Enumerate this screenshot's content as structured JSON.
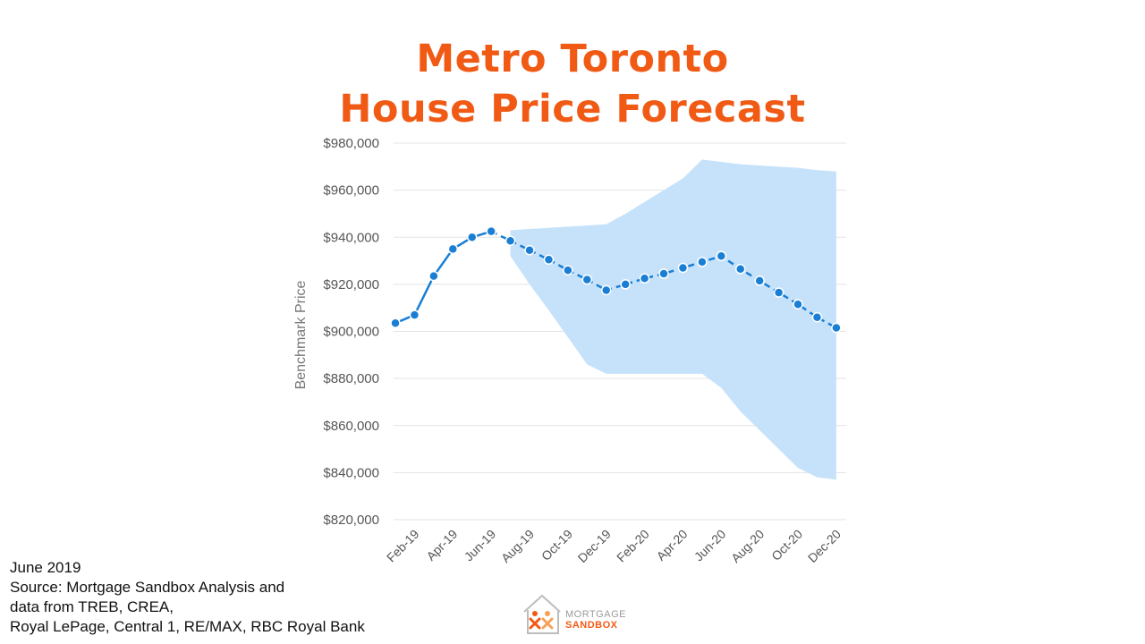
{
  "title_lines": [
    "Metro Toronto",
    "House Price Forecast"
  ],
  "source_lines": [
    "June 2019",
    "Source: Mortgage Sandbox Analysis and",
    "data from TREB, CREA,",
    "Royal LePage, Central 1, RE/MAX, RBC Royal Bank"
  ],
  "logo": {
    "line1": "MORTGAGE",
    "line2": "SANDBOX",
    "icon": "house-people-logo-icon",
    "accent": "#f05a14"
  },
  "chart_data": {
    "type": "line",
    "title": "Metro Toronto House Price Forecast",
    "xlabel": "",
    "ylabel": "Benchmark Price",
    "ylim": [
      820000,
      980000
    ],
    "yticks": [
      820000,
      840000,
      860000,
      880000,
      900000,
      920000,
      940000,
      960000,
      980000
    ],
    "ytick_labels": [
      "$820,000",
      "$840,000",
      "$860,000",
      "$880,000",
      "$900,000",
      "$920,000",
      "$940,000",
      "$960,000",
      "$980,000"
    ],
    "x": [
      "Jan-19",
      "Feb-19",
      "Mar-19",
      "Apr-19",
      "May-19",
      "Jun-19",
      "Jul-19",
      "Aug-19",
      "Sep-19",
      "Oct-19",
      "Nov-19",
      "Dec-19",
      "Jan-20",
      "Feb-20",
      "Mar-20",
      "Apr-20",
      "May-20",
      "Jun-20",
      "Jul-20",
      "Aug-20",
      "Sep-20",
      "Oct-20",
      "Nov-20",
      "Dec-20"
    ],
    "xtick_labels": [
      "Feb-19",
      "Apr-19",
      "Jun-19",
      "Aug-19",
      "Oct-19",
      "Dec-19",
      "Feb-20",
      "Apr-20",
      "Jun-20",
      "Aug-20",
      "Oct-20",
      "Dec-20"
    ],
    "series": [
      {
        "values": [
          903500,
          907000,
          923500,
          935000,
          940000,
          942500,
          938500,
          934500,
          930500,
          926000,
          922000,
          917500,
          920000,
          922500,
          924500,
          927000,
          929500,
          932000,
          926500,
          921500,
          916500,
          911500,
          906000,
          901500
        ],
        "actual_points": 6,
        "color": "#1a7fd4"
      }
    ],
    "forecast_band": {
      "x_start_index": 6,
      "upper": [
        943000,
        943500,
        944000,
        944500,
        945000,
        945500,
        950000,
        955000,
        960000,
        965000,
        973000,
        972000,
        971000,
        970500,
        970000,
        969500,
        968500,
        968000
      ],
      "lower": [
        932000,
        920000,
        909000,
        897500,
        886000,
        882000,
        882000,
        882000,
        882000,
        882000,
        882000,
        876000,
        866000,
        858000,
        850000,
        842000,
        838000,
        837000
      ],
      "color": "#c6e2fb"
    },
    "grid": true,
    "legend": "none"
  }
}
